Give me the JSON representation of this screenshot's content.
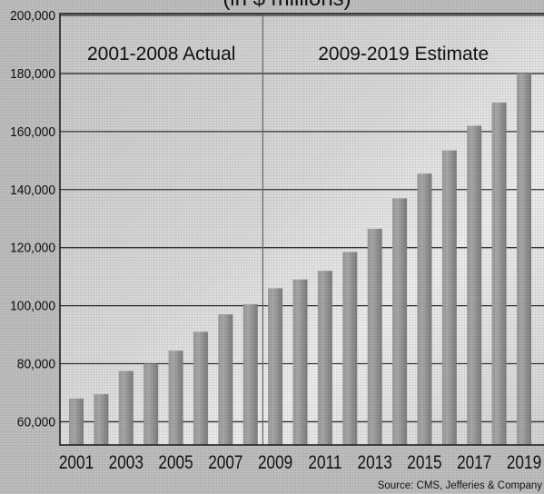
{
  "chart_data": {
    "type": "bar",
    "subtitle": "(in $ millions)",
    "x": [
      2001,
      2002,
      2003,
      2004,
      2005,
      2006,
      2007,
      2008,
      2009,
      2010,
      2011,
      2012,
      2013,
      2014,
      2015,
      2016,
      2017,
      2018,
      2019
    ],
    "values": [
      68000,
      69500,
      77500,
      80000,
      84500,
      91000,
      97000,
      100500,
      106000,
      109000,
      112000,
      118500,
      126500,
      137000,
      145500,
      153500,
      162000,
      170000,
      180000
    ],
    "x_tick_labels": [
      "2001",
      "2003",
      "2005",
      "2007",
      "2009",
      "2011",
      "2013",
      "2015",
      "2017",
      "2019"
    ],
    "y_ticks": [
      60000,
      80000,
      100000,
      120000,
      140000,
      160000,
      180000,
      200000
    ],
    "y_tick_labels": [
      "60,000",
      "80,000",
      "100,000",
      "120,000",
      "140,000",
      "160,000",
      "180,000",
      "200,000"
    ],
    "ylim": [
      52000,
      200000
    ],
    "grid": true,
    "periods": [
      {
        "label": "2001-2008 Actual",
        "from": 2001,
        "to": 2008
      },
      {
        "label": "2009-2019 Estimate",
        "from": 2009,
        "to": 2019
      }
    ],
    "source": "Source: CMS, Jefferies & Company"
  },
  "colors": {
    "background": "#bdbdbd",
    "plot_light": "#ececec",
    "plot_dark": "#c6c6c6",
    "bar_light": "#a8a8a8",
    "bar_dark": "#7c7c7c",
    "gridline": "#333333",
    "divider": "#666666",
    "text": "#111111"
  }
}
